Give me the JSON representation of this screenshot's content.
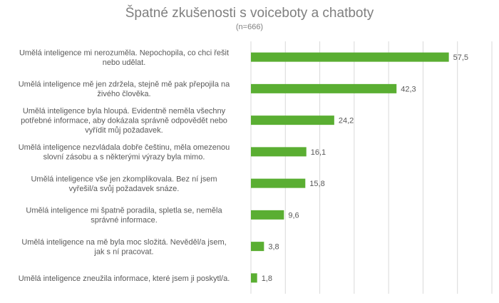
{
  "chart_data": {
    "type": "bar",
    "orientation": "horizontal",
    "title": "Špatné zkušenosti s voiceboty a chatboty",
    "subtitle": "(n=666)",
    "xlim": [
      0,
      70
    ],
    "grid": true,
    "bar_color": "#5aae32",
    "categories": [
      [
        "Umělá inteligence mi nerozuměla. Nepochopila, co chci řešit",
        "nebo udělat."
      ],
      [
        "Umělá inteligence mě jen zdržela, stejně mě pak přepojila na",
        "živého člověka."
      ],
      [
        "Umělá inteligence byla hloupá. Evidentně neměla všechny",
        "potřebné informace, aby dokázala správně odpovědět nebo",
        "vyřídit můj požadavek."
      ],
      [
        "Umělá inteligence nezvládala dobře češtinu, měla omezenou",
        "slovní zásobu a s některými výrazy byla mimo."
      ],
      [
        "Umělá inteligence vše jen zkomplikovala. Bez ní jsem",
        "vyřešil/a svůj požadavek snáze."
      ],
      [
        "Umělá inteligence mi špatně poradila, spletla se, neměla",
        "správné informace."
      ],
      [
        "Umělá inteligence na mě byla moc složitá. Nevěděl/a jsem,",
        "jak s ní pracovat."
      ],
      [
        "Umělá inteligence zneužila informace, které jsem ji poskytl/a."
      ]
    ],
    "values": [
      57.5,
      42.3,
      24.2,
      16.1,
      15.8,
      9.6,
      3.8,
      1.8
    ],
    "value_labels": [
      "57,5",
      "42,3",
      "24,2",
      "16,1",
      "15,8",
      "9,6",
      "3,8",
      "1,8"
    ]
  }
}
